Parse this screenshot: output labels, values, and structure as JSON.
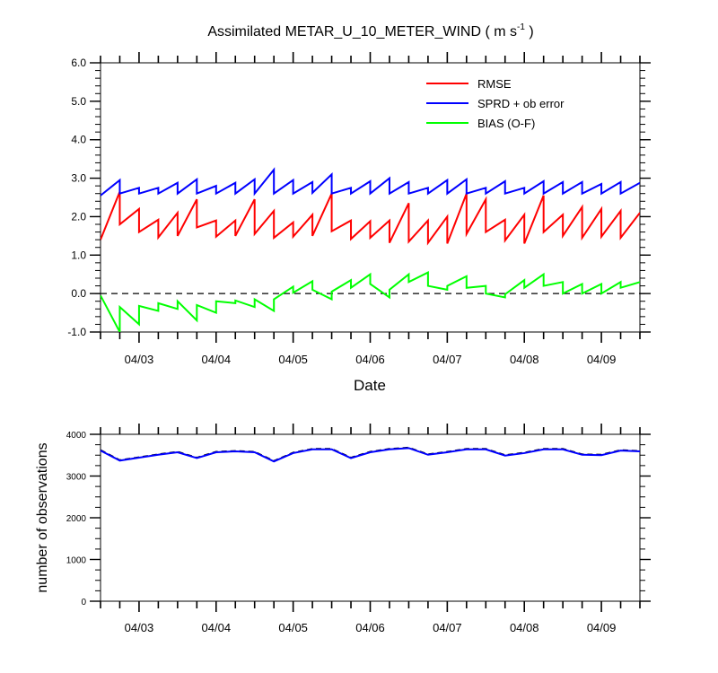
{
  "chart_data": [
    {
      "type": "line",
      "title": "Assimilated METAR_U_10_METER_WIND ( m s",
      "title_superscript": "-1",
      "title_close": " )",
      "xlabel": "Date",
      "ylabel": "",
      "ylim": [
        -1.0,
        6.0
      ],
      "yticks": [
        "-1.0",
        "0.0",
        "1.0",
        "2.0",
        "3.0",
        "4.0",
        "5.0",
        "6.0"
      ],
      "xticks": [
        "04/03",
        "04/04",
        "04/05",
        "04/06",
        "04/07",
        "04/08",
        "04/09"
      ],
      "x": [
        "04/02 12Z",
        "04/02 18Z",
        "04/02 18Z",
        "04/03 00Z",
        "04/03 00Z",
        "04/03 06Z",
        "04/03 06Z",
        "04/03 12Z",
        "04/03 12Z",
        "04/03 18Z",
        "04/03 18Z",
        "04/04 00Z",
        "04/04 00Z",
        "04/04 06Z",
        "04/04 06Z",
        "04/04 12Z",
        "04/04 12Z",
        "04/04 18Z",
        "04/04 18Z",
        "04/05 00Z",
        "04/05 00Z",
        "04/05 06Z",
        "04/05 06Z",
        "04/05 12Z",
        "04/05 12Z",
        "04/05 18Z",
        "04/05 18Z",
        "04/06 00Z",
        "04/06 00Z",
        "04/06 06Z",
        "04/06 06Z",
        "04/06 12Z",
        "04/06 12Z",
        "04/06 18Z",
        "04/06 18Z",
        "04/07 00Z",
        "04/07 00Z",
        "04/07 06Z",
        "04/07 06Z",
        "04/07 12Z",
        "04/07 12Z",
        "04/07 18Z",
        "04/07 18Z",
        "04/08 00Z",
        "04/08 00Z",
        "04/08 06Z",
        "04/08 06Z",
        "04/08 12Z",
        "04/08 12Z",
        "04/08 18Z",
        "04/08 18Z",
        "04/09 00Z",
        "04/09 00Z",
        "04/09 06Z",
        "04/09 06Z",
        "04/09 12Z"
      ],
      "series": [
        {
          "name": "RMSE",
          "color": "#ff0000",
          "values": [
            1.4,
            2.65,
            1.8,
            2.2,
            1.6,
            1.92,
            1.46,
            2.1,
            1.5,
            2.45,
            1.72,
            1.9,
            1.48,
            1.9,
            1.5,
            2.45,
            1.55,
            2.15,
            1.45,
            1.85,
            1.48,
            2.05,
            1.5,
            2.6,
            1.62,
            1.9,
            1.42,
            1.88,
            1.45,
            1.9,
            1.32,
            2.35,
            1.35,
            1.9,
            1.32,
            2.0,
            1.3,
            2.6,
            1.55,
            2.45,
            1.6,
            1.92,
            1.38,
            2.05,
            1.3,
            2.55,
            1.6,
            2.05,
            1.5,
            2.25,
            1.45,
            2.2,
            1.48,
            2.15,
            1.45,
            2.1
          ]
        },
        {
          "name": "SPRD + ob error",
          "color": "#0000ff",
          "values": [
            2.55,
            2.95,
            2.6,
            2.75,
            2.6,
            2.75,
            2.6,
            2.88,
            2.6,
            2.97,
            2.6,
            2.8,
            2.6,
            2.88,
            2.6,
            2.97,
            2.6,
            3.22,
            2.6,
            2.95,
            2.6,
            2.9,
            2.62,
            3.1,
            2.6,
            2.75,
            2.6,
            2.92,
            2.6,
            3.0,
            2.6,
            2.9,
            2.6,
            2.75,
            2.6,
            2.95,
            2.6,
            2.97,
            2.6,
            2.75,
            2.6,
            2.92,
            2.6,
            2.75,
            2.6,
            2.92,
            2.6,
            2.9,
            2.6,
            2.9,
            2.6,
            2.85,
            2.6,
            2.9,
            2.6,
            2.88
          ]
        },
        {
          "name": "BIAS (O-F)",
          "color": "#00ff00",
          "values": [
            -0.05,
            -1.0,
            -0.35,
            -0.8,
            -0.32,
            -0.45,
            -0.25,
            -0.4,
            -0.2,
            -0.7,
            -0.3,
            -0.5,
            -0.2,
            -0.25,
            -0.18,
            -0.35,
            -0.15,
            -0.45,
            -0.15,
            0.18,
            0.02,
            0.32,
            0.1,
            -0.15,
            0.05,
            0.35,
            0.15,
            0.5,
            0.25,
            -0.1,
            0.1,
            0.5,
            0.3,
            0.55,
            0.2,
            0.1,
            0.2,
            0.45,
            0.15,
            0.2,
            0.0,
            -0.1,
            -0.02,
            0.35,
            0.15,
            0.5,
            0.2,
            0.3,
            0.0,
            0.25,
            0.0,
            0.25,
            0.0,
            0.3,
            0.15,
            0.3
          ]
        }
      ],
      "zero_line": true,
      "legend": {
        "placement": "top-right",
        "entries": [
          "RMSE",
          "SPRD + ob error",
          "BIAS (O-F)"
        ]
      }
    },
    {
      "type": "line",
      "title": "",
      "xlabel": "",
      "ylabel": "number of observations",
      "ylim": [
        0,
        4000
      ],
      "yticks": [
        "0",
        "1000",
        "2000",
        "3000",
        "4000"
      ],
      "xticks": [
        "04/03",
        "04/04",
        "04/05",
        "04/06",
        "04/07",
        "04/08",
        "04/09"
      ],
      "x": [
        "04/02 12Z",
        "04/02 18Z",
        "04/03 00Z",
        "04/03 06Z",
        "04/03 12Z",
        "04/03 18Z",
        "04/04 00Z",
        "04/04 06Z",
        "04/04 12Z",
        "04/04 18Z",
        "04/05 00Z",
        "04/05 06Z",
        "04/05 12Z",
        "04/05 18Z",
        "04/06 00Z",
        "04/06 06Z",
        "04/06 12Z",
        "04/06 18Z",
        "04/07 00Z",
        "04/07 06Z",
        "04/07 12Z",
        "04/07 18Z",
        "04/08 00Z",
        "04/08 06Z",
        "04/08 12Z",
        "04/08 18Z",
        "04/09 00Z",
        "04/09 06Z",
        "04/09 12Z"
      ],
      "series": [
        {
          "color": "#000000",
          "dashed": true,
          "values": [
            3620,
            3380,
            3450,
            3520,
            3580,
            3440,
            3580,
            3600,
            3580,
            3360,
            3560,
            3650,
            3650,
            3440,
            3580,
            3650,
            3680,
            3520,
            3580,
            3650,
            3650,
            3500,
            3560,
            3650,
            3650,
            3520,
            3510,
            3620,
            3600
          ]
        },
        {
          "color": "#0000ff",
          "dashed": false,
          "values": [
            3610,
            3370,
            3440,
            3510,
            3570,
            3430,
            3570,
            3590,
            3570,
            3350,
            3550,
            3640,
            3640,
            3430,
            3570,
            3640,
            3670,
            3510,
            3570,
            3640,
            3640,
            3490,
            3550,
            3640,
            3640,
            3510,
            3500,
            3610,
            3590
          ]
        }
      ]
    }
  ]
}
